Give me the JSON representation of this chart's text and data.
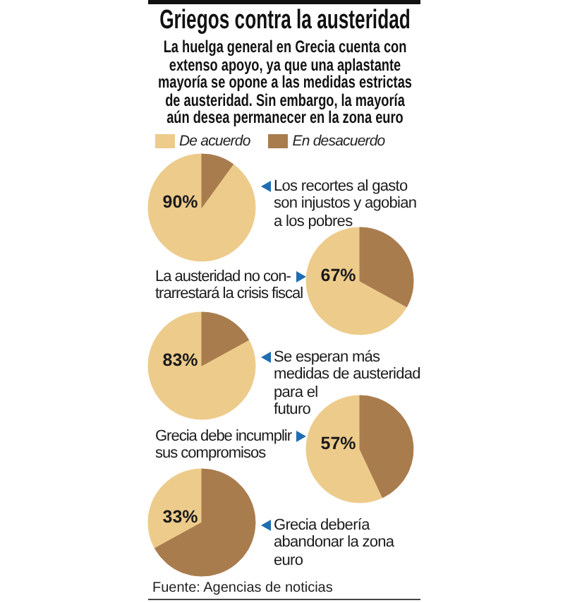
{
  "chart_data": [
    {
      "type": "pie",
      "title": "Griegos contra la austeridad",
      "subtitle": "La huelga general en Grecia cuenta con\nextenso apoyo, ya que una aplastante\nmayoría se opone a las medidas estrictas\nde austeridad. Sin embargo, la mayoría\naún desea permanecer en la zona euro",
      "legend": "top",
      "categories": [
        "De acuerdo",
        "En desacuerdo"
      ],
      "values": [
        90,
        10
      ],
      "colors": [
        "#edcb8b",
        "#a97c4e"
      ],
      "value_labels": [
        "90%",
        null
      ],
      "annotations": [
        "Los recortes al gasto\nson injustos y agobian\na los pobres"
      ]
    },
    {
      "type": "pie",
      "categories": [
        null,
        null
      ],
      "values": [
        67,
        33
      ],
      "colors": [
        "#edcb8b",
        "#a97c4e"
      ],
      "value_labels": [
        "67%",
        null
      ],
      "annotations": [
        "La austeridad no con-\ntrarrestará la crisis fiscal"
      ]
    },
    {
      "type": "pie",
      "categories": [
        null,
        null
      ],
      "values": [
        83,
        17
      ],
      "colors": [
        "#edcb8b",
        "#a97c4e"
      ],
      "value_labels": [
        "83%",
        null
      ],
      "annotations": [
        "Se esperan más\nmedidas de austeridad\npara el\nfuturo"
      ]
    },
    {
      "type": "pie",
      "categories": [
        null,
        null
      ],
      "values": [
        57,
        43
      ],
      "colors": [
        "#edcb8b",
        "#a97c4e"
      ],
      "value_labels": [
        "57%",
        null
      ],
      "annotations": [
        "Grecia debe incumplir\nsus compromisos"
      ]
    },
    {
      "type": "pie",
      "categories": [
        null,
        null
      ],
      "values": [
        33,
        67
      ],
      "colors": [
        "#edcb8b",
        "#a97c4e"
      ],
      "value_labels": [
        "33%",
        null
      ],
      "annotations": [
        "Grecia debería\nabandonar la zona\neuro",
        "Fuente: Agencias de noticias"
      ]
    }
  ]
}
